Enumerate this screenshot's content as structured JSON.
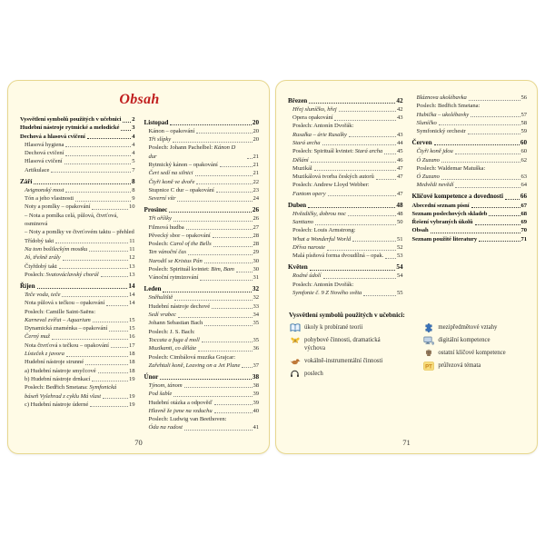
{
  "title": "Obsah",
  "colors": {
    "accent_title": "#c01e1e",
    "page_background": "#fffbe6",
    "page_border": "#e7d78e"
  },
  "left_page": {
    "page_number": "70",
    "columns": {
      "c1": [
        {
          "s": "b",
          "t": "Vysvětlení symbolů použitých v učebnici",
          "p": "2"
        },
        {
          "s": "b",
          "t": "Hudební nástroje rytmické a melodické",
          "p": "3"
        },
        {
          "s": "b",
          "t": "Dechová a hlasová cvičení",
          "p": "4"
        },
        {
          "s": "n",
          "t": "Hlasová hygiena",
          "p": "4"
        },
        {
          "s": "n",
          "t": "Dechová cvičení",
          "p": "4"
        },
        {
          "s": "n",
          "t": "Hlasová cvičení",
          "p": "5"
        },
        {
          "s": "n",
          "t": "Artikulace",
          "p": "7"
        },
        {
          "s": "h",
          "t": "Září",
          "p": "8"
        },
        {
          "s": "i",
          "t": "Avignonský most",
          "p": "8"
        },
        {
          "s": "n",
          "t": "Tón a jeho vlastnosti",
          "p": "9"
        },
        {
          "s": "n",
          "t": "Noty a pomlky – opakování",
          "p": "10"
        },
        {
          "s": "n",
          "t": "– Nota a pomlka celá, půlová, čtvrťová, osminová"
        },
        {
          "s": "n",
          "t": "– Noty a pomlky ve čtvrťovém taktu – přehled"
        },
        {
          "s": "n",
          "t": "Třídobý takt",
          "p": "11"
        },
        {
          "s": "i",
          "t": "Na tom bošileckým mostku",
          "p": "11"
        },
        {
          "s": "i",
          "t": "Jó, třešně zrály",
          "p": "12"
        },
        {
          "s": "n",
          "t": "Čtyřdobý takt",
          "p": "13"
        },
        {
          "s": "m",
          "t": "Poslech: ",
          "ti": "Svatováclavský chorál",
          "p": "13"
        },
        {
          "s": "h",
          "t": "Říjen",
          "p": "14"
        },
        {
          "s": "i",
          "t": "Teče voda, teče",
          "p": "14"
        },
        {
          "s": "n",
          "t": "Nota půlová s tečkou – opakování",
          "p": "14"
        },
        {
          "s": "n",
          "t": "Poslech: Camille Saint-Saëns:"
        },
        {
          "s": "i",
          "t": "Karneval zvířat – Aquarium",
          "p": "15"
        },
        {
          "s": "n",
          "t": "Dynamická znaménka – opakování",
          "p": "15"
        },
        {
          "s": "i",
          "t": "Černý muž",
          "p": "16"
        },
        {
          "s": "n",
          "t": "Nota čtvrťová s tečkou – opakování",
          "p": "17"
        },
        {
          "s": "i",
          "t": "Lísteček z javora",
          "p": "18"
        },
        {
          "s": "n",
          "t": "Hudební nástroje strunné",
          "p": "18"
        },
        {
          "s": "n",
          "t": "a) Hudební nástroje smyčcové",
          "p": "18"
        },
        {
          "s": "n",
          "t": "b) Hudební nástroje drnkací",
          "p": "19"
        },
        {
          "s": "m",
          "t": "Poslech: Bedřich Smetana: ",
          "ti": "Symfonická"
        },
        {
          "s": "i",
          "t": "báseň Vyšehrad z cyklu Má vlast",
          "p": "19"
        },
        {
          "s": "n",
          "t": "c) Hudební nástroje úderné",
          "p": "19"
        }
      ],
      "c2": [
        {
          "s": "h",
          "t": "Listopad",
          "p": "20"
        },
        {
          "s": "n",
          "t": "Kánon – opakování",
          "p": "20"
        },
        {
          "s": "i",
          "t": "Tři slípky",
          "p": "20"
        },
        {
          "s": "m",
          "t": "Poslech: Johann Pachelbel: ",
          "ti": "Kánon D dur",
          "p": "21"
        },
        {
          "s": "n",
          "t": "Rytmický kánon – opakování",
          "p": "21"
        },
        {
          "s": "i",
          "t": "Čert sedí na silnici",
          "p": "21"
        },
        {
          "s": "i",
          "t": "Čtyři koně ve dvoře",
          "p": "22"
        },
        {
          "s": "n",
          "t": "Stupnice C dur – opakování",
          "p": "23"
        },
        {
          "s": "i",
          "t": "Severní vítr",
          "p": "24"
        },
        {
          "s": "h",
          "t": "Prosinec",
          "p": "26"
        },
        {
          "s": "i",
          "t": "Tři oříšky",
          "p": "26"
        },
        {
          "s": "n",
          "t": "Filmová hudba",
          "p": "27"
        },
        {
          "s": "n",
          "t": "Pěvecký sbor – opakování",
          "p": "28"
        },
        {
          "s": "m",
          "t": "Poslech: ",
          "ti": "Carol of the Bells",
          "p": "28"
        },
        {
          "s": "i",
          "t": "Ten vánoční čas",
          "p": "29"
        },
        {
          "s": "i",
          "t": "Narodil se Kristus Pán",
          "p": "30"
        },
        {
          "s": "m",
          "t": "Poslech: Spirituál kvintet: ",
          "ti": "Bim, Bam",
          "p": "30"
        },
        {
          "s": "n",
          "t": "Vánoční rytmizování",
          "p": "31"
        },
        {
          "s": "h",
          "t": "Leden",
          "p": "32"
        },
        {
          "s": "i",
          "t": "Sněhuliště",
          "p": "32"
        },
        {
          "s": "n",
          "t": "Hudební nástroje dechové",
          "p": "33"
        },
        {
          "s": "i",
          "t": "Sedí vrabec",
          "p": "34"
        },
        {
          "s": "n",
          "t": "Johann Sebastian Bach",
          "p": "35"
        },
        {
          "s": "n",
          "t": "Poslech: J. S. Bach:"
        },
        {
          "s": "i",
          "t": "Toccata a fuga d moll",
          "p": "35"
        },
        {
          "s": "i",
          "t": "Muzikanti, co děláte",
          "p": "36"
        },
        {
          "s": "n",
          "t": "Poslech: Cimbálová muzika Grajcar:"
        },
        {
          "s": "i",
          "t": "Zařehtali koně, Leaving on a Jet Plane",
          "p": "37"
        },
        {
          "s": "h",
          "t": "Únor",
          "p": "38"
        },
        {
          "s": "i",
          "t": "Týnom, tánom",
          "p": "38"
        },
        {
          "s": "i",
          "t": "Pod šable",
          "p": "39"
        },
        {
          "s": "n",
          "t": "Hudební otázka a odpověď",
          "p": "39"
        },
        {
          "s": "i",
          "t": "Hlavně že jsme na vzduchu",
          "p": "40"
        },
        {
          "s": "n",
          "t": "Poslech: Ludwig van Beethoven:"
        },
        {
          "s": "i",
          "t": "Óda na radost",
          "p": "41"
        }
      ]
    }
  },
  "right_page": {
    "page_number": "71",
    "columns": {
      "c1": [
        {
          "s": "h",
          "t": "Březen",
          "p": "42"
        },
        {
          "s": "i",
          "t": "Hřej sluníčko, hřej",
          "p": "42"
        },
        {
          "s": "n",
          "t": "Opera opakování",
          "p": "43"
        },
        {
          "s": "n",
          "t": "Poslech: Antonín Dvořák:"
        },
        {
          "s": "i",
          "t": "Rusalka – árie Rusalky",
          "p": "43"
        },
        {
          "s": "i",
          "t": "Stará archa",
          "p": "44"
        },
        {
          "s": "m",
          "t": "Poslech: Spirituál kvintet: ",
          "ti": "Stará archa",
          "p": "45"
        },
        {
          "s": "i",
          "t": "Dělání",
          "p": "46"
        },
        {
          "s": "n",
          "t": "Muzikál",
          "p": "47"
        },
        {
          "s": "n",
          "t": "Muzikálová tvorba českých autorů",
          "p": "47"
        },
        {
          "s": "n",
          "t": "Poslech: Andrew Lloyd Webber:"
        },
        {
          "s": "i",
          "t": "Fantom opery",
          "p": "47"
        },
        {
          "s": "h",
          "t": "Duben",
          "p": "48"
        },
        {
          "s": "i",
          "t": "Hvězdičky, dobrou noc",
          "p": "48"
        },
        {
          "s": "i",
          "t": "Santiano",
          "p": "50"
        },
        {
          "s": "n",
          "t": "Poslech: Louis Armstrong:"
        },
        {
          "s": "i",
          "t": "What a Wonderful World",
          "p": "51"
        },
        {
          "s": "i",
          "t": "Dříva naroste",
          "p": "52"
        },
        {
          "s": "n",
          "t": "Malá písňová forma dvoudílná – opak.",
          "p": "53"
        },
        {
          "s": "h",
          "t": "Květen",
          "p": "54"
        },
        {
          "s": "i",
          "t": "Rodné údolí",
          "p": "54"
        },
        {
          "s": "n",
          "t": "Poslech: Antonín Dvořák:"
        },
        {
          "s": "i",
          "t": "Symfonie č. 9 Z Nového světa",
          "p": "55"
        }
      ],
      "c2": [
        {
          "s": "i",
          "t": "Bláznova ukolébavka",
          "p": "56"
        },
        {
          "s": "n",
          "t": "Poslech: Bedřich Smetana:"
        },
        {
          "s": "i",
          "t": "Hubička – ukolébavky",
          "p": "57"
        },
        {
          "s": "i",
          "t": "Sluníčko",
          "p": "58"
        },
        {
          "s": "n",
          "t": "Symfonický orchestr",
          "p": "59"
        },
        {
          "s": "h",
          "t": "Červen",
          "p": "60"
        },
        {
          "s": "i",
          "t": "Čtyři koně jdou",
          "p": "60"
        },
        {
          "s": "i",
          "t": "Ó Zuzano",
          "p": "62"
        },
        {
          "s": "n",
          "t": "Poslech: Waldemar Matuška:"
        },
        {
          "s": "i",
          "t": "Ó Zuzano",
          "p": "63"
        },
        {
          "s": "i",
          "t": "Medvědi nevědí",
          "p": "64"
        },
        {
          "s": "h",
          "t": "Klíčové kompetence a dovednosti",
          "p": "66"
        },
        {
          "s": "b",
          "t": "Abecední seznam písní",
          "p": "67"
        },
        {
          "s": "b",
          "t": "Seznam poslechových skladeb",
          "p": "68"
        },
        {
          "s": "b",
          "t": "Řešení vybraných úkolů",
          "p": "69"
        },
        {
          "s": "b",
          "t": "Obsah",
          "p": "70"
        },
        {
          "s": "b",
          "t": "Seznam použité literatury",
          "p": "71"
        }
      ]
    },
    "legend": {
      "title": "Vysvětlení symbolů použitých v učebnici:",
      "left_items": [
        {
          "icon": "book-icon",
          "label": "úkoly k probírané teorii"
        },
        {
          "icon": "butterfly-icon",
          "label": "pohybové činnosti, dramatická výchova"
        },
        {
          "icon": "bird-icon",
          "label": "vokálně-instrumentální činnosti"
        },
        {
          "icon": "headphones-icon",
          "label": "poslech"
        }
      ],
      "right_items": [
        {
          "icon": "puzzle-icon",
          "label": "mezipředmětové vztahy"
        },
        {
          "icon": "computer-icon",
          "label": "digitální kompetence"
        },
        {
          "icon": "robot-icon",
          "label": "ostatní klíčové kompetence"
        },
        {
          "icon": "pt-icon",
          "label": "průřezová témata"
        }
      ]
    }
  }
}
